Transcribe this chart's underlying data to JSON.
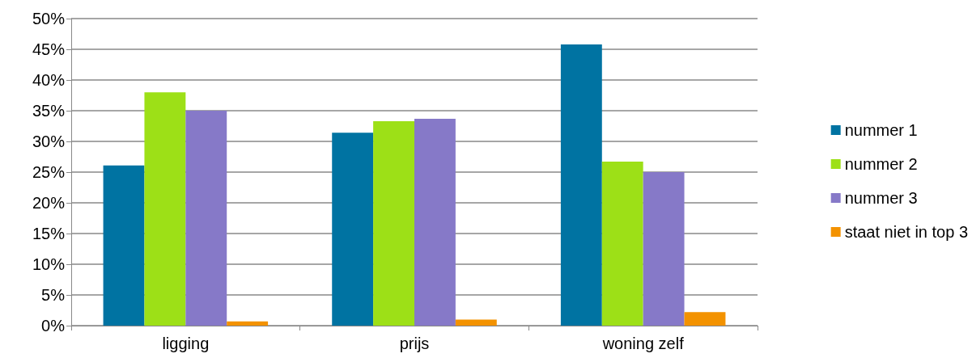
{
  "chart_data": {
    "type": "bar",
    "categories": [
      "ligging",
      "prijs",
      "woning zelf"
    ],
    "series": [
      {
        "name": "nummer 1",
        "color": "#0073a2",
        "values": [
          26.1,
          31.4,
          45.8
        ]
      },
      {
        "name": "nummer 2",
        "color": "#9de017",
        "values": [
          38.0,
          33.3,
          26.7
        ]
      },
      {
        "name": "nummer 3",
        "color": "#8679c8",
        "values": [
          35.0,
          33.7,
          25.0
        ]
      },
      {
        "name": "staat niet in top 3",
        "color": "#f39200",
        "values": [
          0.7,
          1.0,
          2.2
        ]
      }
    ],
    "ylim": [
      0,
      50
    ],
    "yticks": [
      {
        "value": 0,
        "label": "0%"
      },
      {
        "value": 5,
        "label": "5%"
      },
      {
        "value": 10,
        "label": "10%"
      },
      {
        "value": 15,
        "label": "15%"
      },
      {
        "value": 20,
        "label": "20%"
      },
      {
        "value": 25,
        "label": "25%"
      },
      {
        "value": 30,
        "label": "30%"
      },
      {
        "value": 35,
        "label": "35%"
      },
      {
        "value": 40,
        "label": "40%"
      },
      {
        "value": 45,
        "label": "45%"
      },
      {
        "value": 50,
        "label": "50%"
      }
    ],
    "grid": "y",
    "legend": "right"
  }
}
